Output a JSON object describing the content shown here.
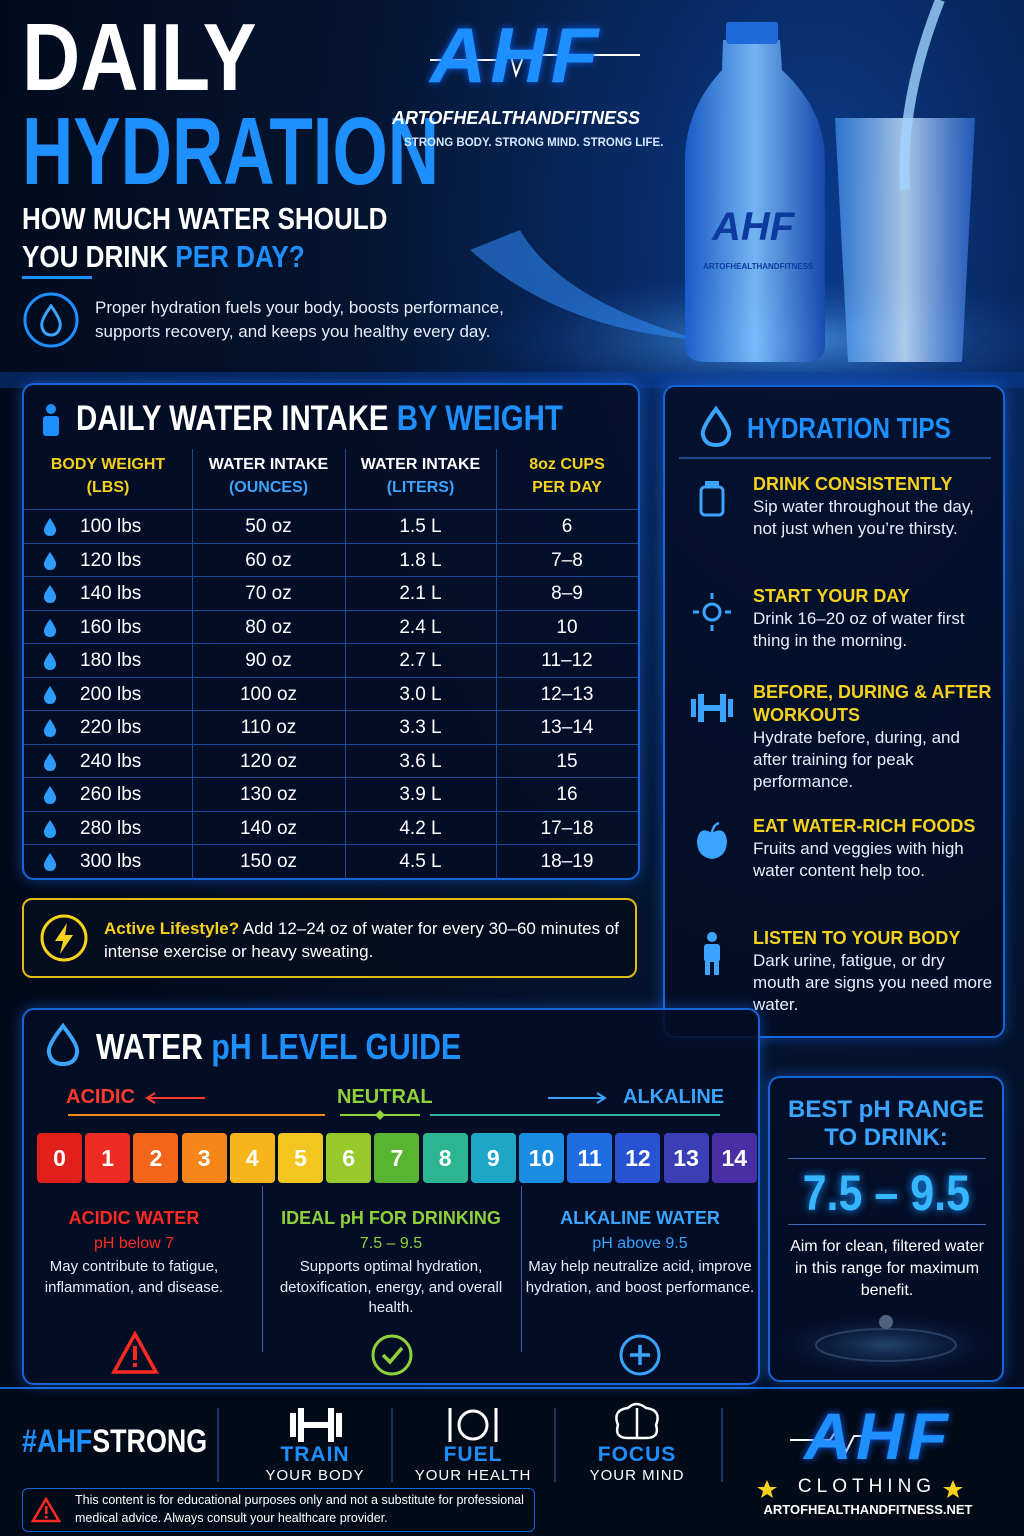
{
  "header": {
    "title_line1": "DAILY",
    "title_line2": "HYDRATION",
    "subtitle_line1": "HOW MUCH WATER SHOULD",
    "subtitle_line2": "YOU DRINK",
    "subtitle_highlight": "PER DAY?",
    "intro": "Proper hydration fuels your body, boosts performance, supports recovery, and keeps you healthy every day."
  },
  "brand": {
    "logo": "AHF",
    "name": "ARTOFHEALTHANDFITNESS",
    "tagline": "STRONG BODY. STRONG MIND. STRONG LIFE."
  },
  "table": {
    "title": "DAILY WATER INTAKE",
    "title_highlight": "BY WEIGHT",
    "headers": [
      [
        "BODY WEIGHT",
        "(LBS)"
      ],
      [
        "WATER INTAKE",
        "(OUNCES)"
      ],
      [
        "WATER INTAKE",
        "(LITERS)"
      ],
      [
        "8oz CUPS",
        "PER DAY"
      ]
    ],
    "rows": [
      [
        "100 lbs",
        "50 oz",
        "1.5 L",
        "6"
      ],
      [
        "120 lbs",
        "60 oz",
        "1.8 L",
        "7–8"
      ],
      [
        "140 lbs",
        "70 oz",
        "2.1 L",
        "8–9"
      ],
      [
        "160 lbs",
        "80 oz",
        "2.4 L",
        "10"
      ],
      [
        "180 lbs",
        "90 oz",
        "2.7 L",
        "11–12"
      ],
      [
        "200 lbs",
        "100 oz",
        "3.0 L",
        "12–13"
      ],
      [
        "220 lbs",
        "110 oz",
        "3.3 L",
        "13–14"
      ],
      [
        "240 lbs",
        "120 oz",
        "3.6 L",
        "15"
      ],
      [
        "260 lbs",
        "130 oz",
        "3.9 L",
        "16"
      ],
      [
        "280 lbs",
        "140 oz",
        "4.2 L",
        "17–18"
      ],
      [
        "300 lbs",
        "150 oz",
        "4.5 L",
        "18–19"
      ]
    ]
  },
  "active": {
    "label": "Active Lifestyle?",
    "text": "Add 12–24 oz of water for every 30–60 minutes of intense exercise or heavy sweating."
  },
  "tips": {
    "title": "HYDRATION TIPS",
    "items": [
      {
        "title": "DRINK CONSISTENTLY",
        "text": "Sip water throughout the day, not just when you’re thirsty."
      },
      {
        "title": "START YOUR DAY",
        "text": "Drink 16–20 oz of water first thing in the morning."
      },
      {
        "title": "BEFORE, DURING & AFTER WORKOUTS",
        "text": "Hydrate before, during, and after training for peak performance."
      },
      {
        "title": "EAT WATER-RICH FOODS",
        "text": "Fruits and veggies with high water content help too."
      },
      {
        "title": "LISTEN TO YOUR BODY",
        "text": "Dark urine, fatigue, or dry mouth are signs you need more water."
      }
    ]
  },
  "ph": {
    "title": "WATER",
    "title_highlight": "pH LEVEL GUIDE",
    "acidic": "ACIDIC",
    "neutral": "NEUTRAL",
    "alkaline": "ALKALINE",
    "scale": [
      0,
      1,
      2,
      3,
      4,
      5,
      6,
      7,
      8,
      9,
      10,
      11,
      12,
      13,
      14
    ],
    "colors": [
      "#e1201b",
      "#ee2b22",
      "#f2661c",
      "#f5861a",
      "#f6b51b",
      "#f2c61f",
      "#98c92a",
      "#58b431",
      "#2db592",
      "#1ea6c6",
      "#1b8de0",
      "#1f6de3",
      "#2952d3",
      "#3a3fb6",
      "#4a2ea6"
    ],
    "columns": [
      {
        "title": "ACIDIC WATER",
        "range": "pH below 7",
        "text": "May contribute to fatigue, inflammation, and disease."
      },
      {
        "title": "IDEAL pH FOR DRINKING",
        "range": "7.5 – 9.5",
        "text": "Supports optimal hydration, detoxification, energy, and overall health."
      },
      {
        "title": "ALKALINE WATER",
        "range": "pH above 9.5",
        "text": "May help neutralize acid, improve hydration, and boost performance."
      }
    ]
  },
  "best": {
    "title": "BEST pH RANGE TO DRINK:",
    "range": "7.5 – 9.5",
    "text": "Aim for clean, filtered water in this range for maximum benefit."
  },
  "footer": {
    "hashtag": "#AHF",
    "hashtag_rest": "STRONG",
    "pillars": [
      {
        "title": "TRAIN",
        "subtitle": "YOUR BODY"
      },
      {
        "title": "FUEL",
        "subtitle": "YOUR HEALTH"
      },
      {
        "title": "FOCUS",
        "subtitle": "YOUR MIND"
      }
    ],
    "brand_logo": "AHF",
    "brand_line": "CLOTHING",
    "website": "ARTOFHEALTHANDFITNESS.NET",
    "disclaimer": "This content is for educational purposes only and not a substitute for professional medical advice. Always consult your healthcare provider."
  }
}
